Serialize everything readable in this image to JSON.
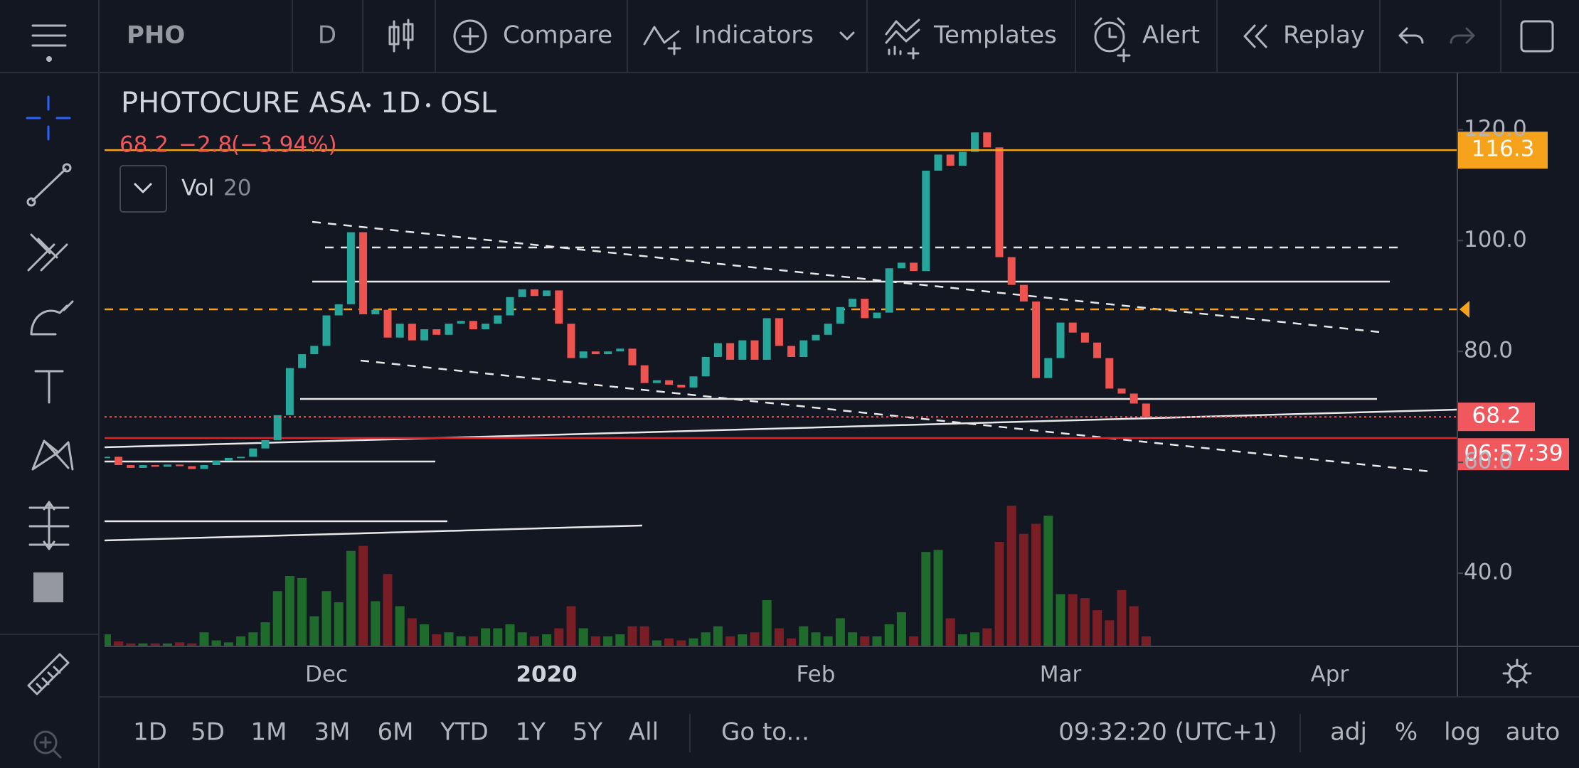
{
  "toolbar": {
    "symbol": "PHO",
    "interval": "D",
    "compare": "Compare",
    "indicators": "Indicators",
    "templates": "Templates",
    "alert": "Alert",
    "replay": "Replay"
  },
  "chart_data": {
    "type": "candlestick",
    "title": "PHOTOCURE ASA",
    "interval": "1D",
    "exchange": "OSL",
    "quote": {
      "last": 68.2,
      "change": {
        "value": -2.8,
        "label": "−2.8"
      },
      "change_pct": {
        "value": -3.94,
        "label": "(−3.94%)"
      }
    },
    "volume_label": "Vol",
    "volume_length": 20,
    "alert_level": 116.3,
    "countdown": "06:57:39",
    "up_color": "#26a69a",
    "down_color": "#ef5350",
    "volume_up_color": "#1f6b2c",
    "volume_down_color": "#7a1e26",
    "categories": [
      null,
      null,
      null,
      null,
      null,
      null,
      null,
      null,
      null,
      null,
      null,
      null,
      null,
      null,
      null,
      null,
      null,
      null,
      "Dec",
      null,
      null,
      null,
      null,
      null,
      null,
      null,
      null,
      null,
      null,
      null,
      null,
      null,
      null,
      null,
      null,
      null,
      "2020",
      null,
      null,
      null,
      null,
      null,
      null,
      null,
      null,
      null,
      null,
      null,
      null,
      null,
      null,
      null,
      null,
      null,
      null,
      null,
      null,
      null,
      "Feb",
      null,
      null,
      null,
      null,
      null,
      null,
      null,
      null,
      null,
      null,
      null,
      null,
      null,
      null,
      null,
      null,
      null,
      null,
      null,
      "Mar",
      null,
      null,
      null,
      null,
      null,
      null,
      null,
      null,
      null,
      null,
      null,
      null,
      null,
      null,
      null,
      null,
      null,
      null,
      null,
      null,
      null,
      "Apr",
      null,
      null,
      null,
      null,
      null,
      null,
      null,
      null,
      null
    ],
    "values": [
      61,
      59.5,
      59,
      59.5,
      59.2,
      59.6,
      59.3,
      58.8,
      59.5,
      60.3,
      60.8,
      61,
      62.5,
      64,
      68.5,
      77,
      79.5,
      81,
      86.5,
      88.5,
      101.5,
      86.7,
      87.5,
      82.5,
      85,
      82,
      84,
      83,
      85,
      85.5,
      84,
      85,
      86.5,
      89.8,
      91.2,
      90,
      91,
      85,
      78.8,
      80,
      79.5,
      80,
      80.5,
      77.5,
      74.3,
      74.8,
      74,
      73.5,
      75.5,
      79,
      81.5,
      78.5,
      82,
      78.5,
      86,
      81,
      79,
      82,
      83,
      85,
      88,
      89.5,
      86,
      87,
      95,
      96,
      94.5,
      112.6,
      115.5,
      113.5,
      116,
      119.5,
      116.8,
      97,
      92,
      89,
      75.2,
      78.8,
      85.2,
      83.4,
      81.6,
      78.8,
      73.3,
      72.4,
      70.6,
      68.2,
      null,
      null,
      null,
      null,
      null,
      null,
      null,
      null,
      null,
      null,
      null,
      null,
      null,
      null,
      null,
      null,
      null,
      null,
      null,
      null,
      null,
      null,
      null,
      null
    ],
    "volume": [
      12,
      5,
      3,
      3,
      3,
      3,
      4,
      3,
      14,
      6,
      4,
      10,
      14,
      24,
      55,
      70,
      68,
      30,
      55,
      44,
      95,
      100,
      45,
      72,
      40,
      28,
      22,
      12,
      14,
      10,
      10,
      18,
      18,
      22,
      14,
      10,
      12,
      18,
      40,
      18,
      10,
      10,
      12,
      20,
      20,
      6,
      8,
      6,
      8,
      14,
      20,
      10,
      12,
      14,
      46,
      18,
      8,
      20,
      14,
      10,
      28,
      14,
      10,
      10,
      22,
      34,
      10,
      94,
      96,
      28,
      12,
      14,
      18,
      104,
      140,
      112,
      122,
      130,
      52,
      52,
      48,
      36,
      26,
      56,
      40,
      10,
      null,
      null,
      null,
      null,
      null,
      null,
      null,
      null,
      null,
      null,
      null,
      null,
      null,
      null,
      null,
      null,
      null,
      null,
      null,
      null,
      null,
      null,
      null,
      null
    ],
    "vlim": [
      0,
      150
    ],
    "ylim": [
      26.8,
      130.3
    ],
    "yticks": [
      {
        "value": 40,
        "label": "40.0"
      },
      {
        "value": 60,
        "label": "60.0"
      },
      {
        "value": 80,
        "label": "80.0"
      },
      {
        "value": 100,
        "label": "100.0"
      },
      {
        "value": 120,
        "label": "120.0"
      }
    ],
    "grid": false
  },
  "bottom_bar": {
    "ranges": [
      "1D",
      "5D",
      "1M",
      "3M",
      "6M",
      "YTD",
      "1Y",
      "5Y",
      "All"
    ],
    "goto": "Go to...",
    "clock": "09:32:20 (UTC+1)",
    "options": [
      "adj",
      "%",
      "log",
      "auto"
    ]
  }
}
